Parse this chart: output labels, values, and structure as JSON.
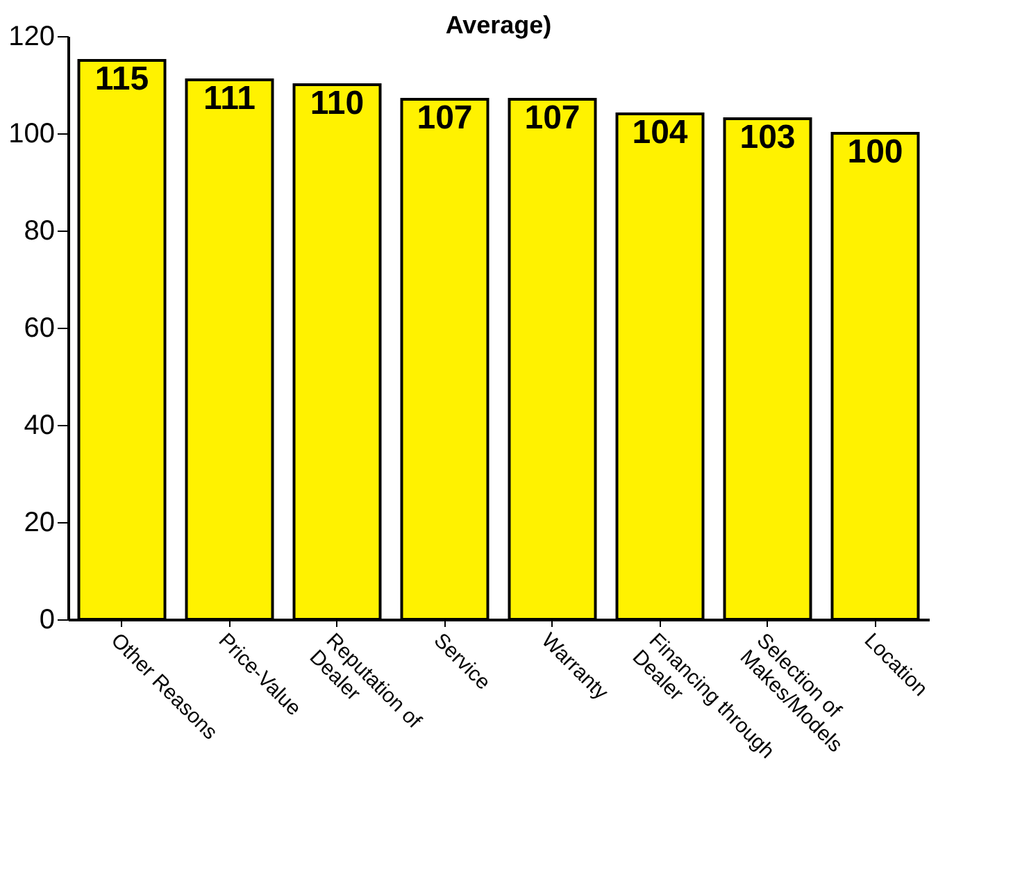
{
  "chart_data": {
    "type": "bar",
    "title": "Average)",
    "categories": [
      "Other Reasons",
      "Price-Value",
      "Reputation of Dealer",
      "Service",
      "Warranty",
      "Financing through Dealer",
      "Selection of Makes/Models",
      "Location"
    ],
    "values": [
      115,
      111,
      110,
      107,
      107,
      104,
      103,
      100
    ],
    "color": "#fff200",
    "ylim": [
      0,
      120
    ],
    "yticks": [
      0,
      20,
      40,
      60,
      80,
      100,
      120
    ],
    "grid": false,
    "data_labels": true
  }
}
